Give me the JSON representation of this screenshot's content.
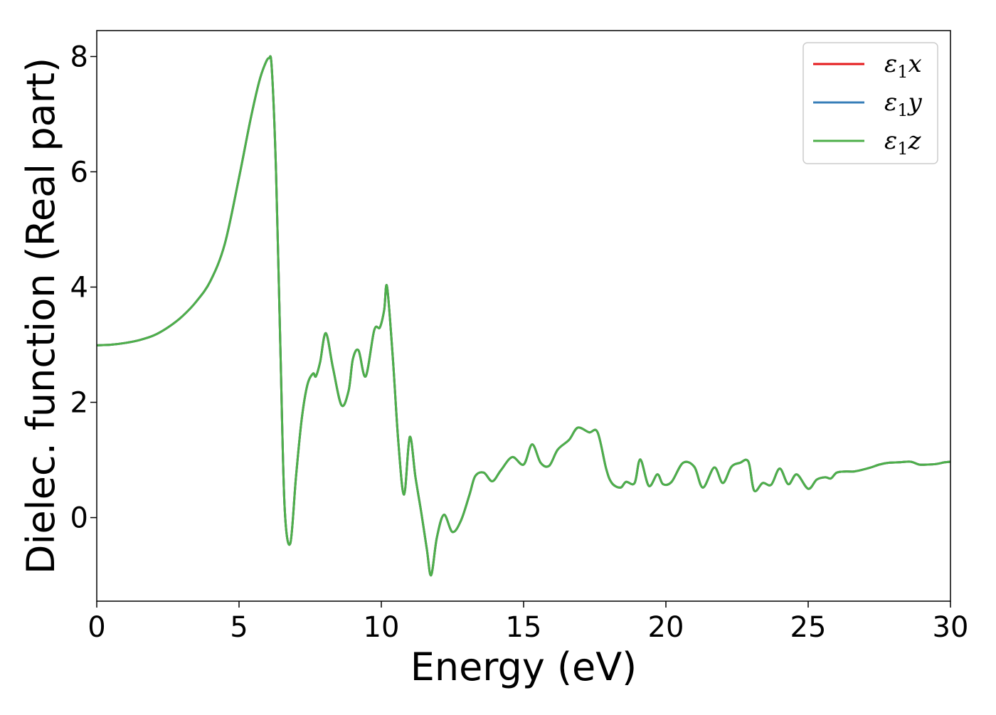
{
  "chart_data": {
    "type": "line",
    "xlabel": "Energy (eV)",
    "ylabel": "Dielec. function (Real part)",
    "xlim": [
      0,
      30
    ],
    "ylim": [
      -1.45,
      8.45
    ],
    "xticks": [
      0,
      5,
      10,
      15,
      20,
      25,
      30
    ],
    "yticks": [
      0,
      2,
      4,
      6,
      8
    ],
    "grid": false,
    "legend_position": "top-right",
    "series": [
      {
        "name": "ε1x",
        "legend": {
          "base": "ε",
          "sub": "1",
          "tail": "x"
        },
        "color": "#e41a1c"
      },
      {
        "name": "ε1y",
        "legend": {
          "base": "ε",
          "sub": "1",
          "tail": "y"
        },
        "color": "#377eb8"
      },
      {
        "name": "ε1z",
        "legend": {
          "base": "ε",
          "sub": "1",
          "tail": "z"
        },
        "color": "#4daf4a"
      }
    ],
    "x": [
      0,
      0.5,
      1.0,
      1.5,
      2.0,
      2.5,
      3.0,
      3.5,
      4.0,
      4.5,
      5.0,
      5.4,
      5.7,
      5.9,
      6.05,
      6.15,
      6.3,
      6.45,
      6.6,
      6.8,
      7.0,
      7.2,
      7.4,
      7.6,
      7.7,
      7.85,
      8.05,
      8.3,
      8.6,
      8.85,
      9.0,
      9.2,
      9.45,
      9.75,
      9.95,
      10.1,
      10.2,
      10.4,
      10.6,
      10.8,
      11.0,
      11.2,
      11.4,
      11.6,
      11.75,
      11.95,
      12.2,
      12.5,
      12.8,
      13.1,
      13.3,
      13.6,
      13.9,
      14.2,
      14.6,
      15.0,
      15.3,
      15.6,
      15.9,
      16.2,
      16.6,
      16.9,
      17.3,
      17.6,
      17.9,
      18.1,
      18.4,
      18.6,
      18.9,
      19.1,
      19.4,
      19.7,
      19.9,
      20.2,
      20.6,
      21.0,
      21.3,
      21.7,
      22.0,
      22.3,
      22.6,
      22.9,
      23.1,
      23.4,
      23.7,
      24.0,
      24.3,
      24.6,
      25.0,
      25.3,
      25.6,
      25.8,
      26.0,
      26.3,
      26.6,
      26.9,
      27.2,
      27.5,
      27.8,
      28.2,
      28.6,
      28.9,
      29.2,
      29.5,
      29.8,
      30.0
    ],
    "y": [
      2.99,
      3.0,
      3.03,
      3.08,
      3.16,
      3.3,
      3.49,
      3.75,
      4.11,
      4.75,
      5.9,
      6.9,
      7.55,
      7.85,
      7.97,
      7.8,
      6.0,
      3.0,
      0.2,
      -0.45,
      0.7,
      1.7,
      2.3,
      2.5,
      2.45,
      2.7,
      3.2,
      2.6,
      1.95,
      2.2,
      2.75,
      2.9,
      2.45,
      3.25,
      3.3,
      3.6,
      4.01,
      2.8,
      1.3,
      0.4,
      1.4,
      0.7,
      0.1,
      -0.55,
      -1.0,
      -0.35,
      0.05,
      -0.25,
      -0.05,
      0.4,
      0.72,
      0.78,
      0.63,
      0.82,
      1.05,
      0.92,
      1.27,
      0.95,
      0.9,
      1.18,
      1.35,
      1.56,
      1.48,
      1.48,
      0.85,
      0.6,
      0.52,
      0.62,
      0.6,
      1.01,
      0.55,
      0.75,
      0.58,
      0.62,
      0.95,
      0.88,
      0.52,
      0.87,
      0.6,
      0.88,
      0.95,
      0.97,
      0.47,
      0.6,
      0.57,
      0.85,
      0.58,
      0.75,
      0.5,
      0.66,
      0.7,
      0.68,
      0.78,
      0.8,
      0.8,
      0.83,
      0.87,
      0.92,
      0.95,
      0.96,
      0.97,
      0.92,
      0.92,
      0.93,
      0.96,
      0.97
    ]
  }
}
